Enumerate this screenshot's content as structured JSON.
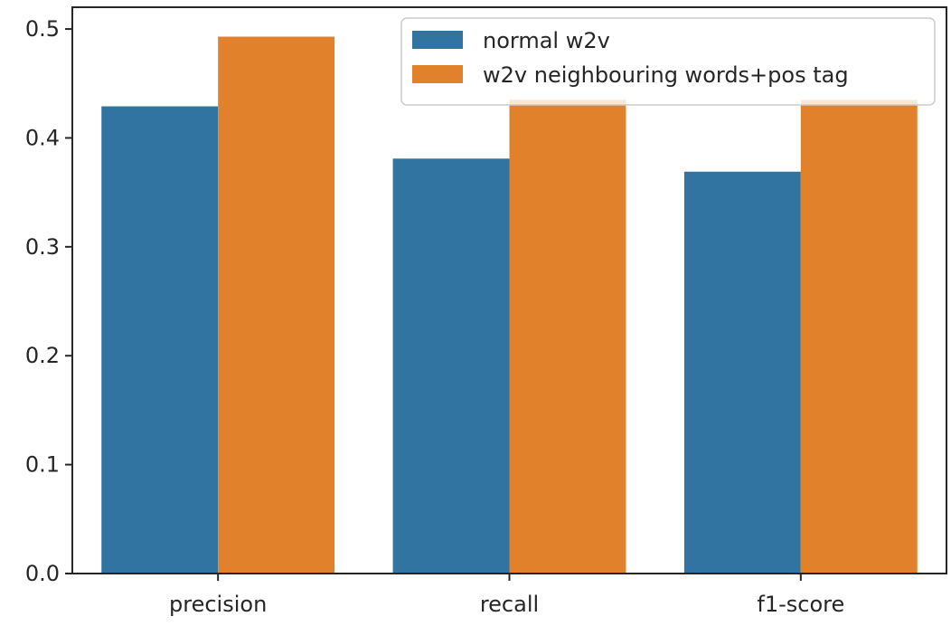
{
  "chart_data": {
    "type": "bar",
    "title": "",
    "xlabel": "",
    "ylabel": "",
    "categories": [
      "precision",
      "recall",
      "f1-score"
    ],
    "ylim": [
      0,
      0.52
    ],
    "yticks": [
      "0.0",
      "0.1",
      "0.2",
      "0.3",
      "0.4",
      "0.5"
    ],
    "ytick_values": [
      0.0,
      0.1,
      0.2,
      0.3,
      0.4,
      0.5
    ],
    "grid": false,
    "legend_position": "top-right",
    "series": [
      {
        "name": "normal w2v",
        "color": "#3274a1",
        "values": [
          0.429,
          0.381,
          0.369
        ]
      },
      {
        "name": "w2v neighbouring words+pos tag",
        "color": "#e1812c",
        "values": [
          0.493,
          0.435,
          0.435
        ]
      }
    ]
  }
}
